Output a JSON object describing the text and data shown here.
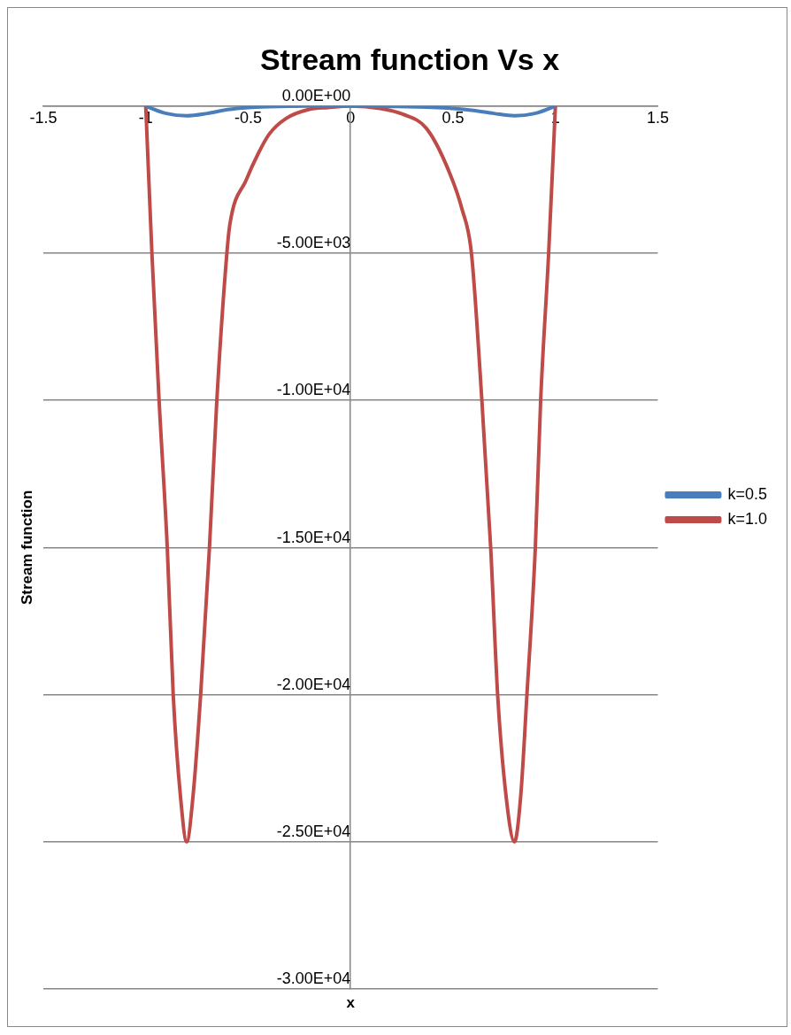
{
  "chart_data": {
    "type": "line",
    "title": "Stream function Vs x",
    "xlabel": "x",
    "ylabel": "Stream function",
    "xlim": [
      -1.5,
      1.5
    ],
    "xticks": [
      -1.5,
      -1,
      -0.5,
      0,
      0.5,
      1,
      1.5
    ],
    "ylim": [
      -30000,
      0
    ],
    "yticks": [
      {
        "value": -30000,
        "label": "-3.00E+04"
      },
      {
        "value": -25000,
        "label": "-2.50E+04"
      },
      {
        "value": -20000,
        "label": "-2.00E+04"
      },
      {
        "value": -15000,
        "label": "-1.50E+04"
      },
      {
        "value": -10000,
        "label": "-1.00E+04"
      },
      {
        "value": -5000,
        "label": "-5.00E+03"
      },
      {
        "value": 0,
        "label": "0.00E+00"
      }
    ],
    "grid": "y",
    "legend": "right",
    "marker": "none",
    "line_style": "solid",
    "series": [
      {
        "name": "k=0.5",
        "color": "#4a7ebb",
        "x": [
          -1,
          -0.9,
          -0.8,
          -0.7,
          -0.6,
          -0.5,
          -0.4,
          -0.2,
          0,
          0.2,
          0.4,
          0.5,
          0.6,
          0.7,
          0.8,
          0.9,
          1
        ],
        "values": [
          0,
          -250,
          -330,
          -250,
          -120,
          -50,
          -20,
          0,
          0,
          -10,
          -40,
          -80,
          -150,
          -250,
          -330,
          -250,
          0
        ]
      },
      {
        "name": "k=1.0",
        "color": "#be4b48",
        "x": [
          -1,
          -0.97,
          -0.935,
          -0.895,
          -0.866,
          -0.83,
          -0.8,
          -0.77,
          -0.732,
          -0.689,
          -0.653,
          -0.604,
          -0.589,
          -0.509,
          -0.45,
          -0.397,
          -0.317,
          -0.206,
          -0.11,
          0,
          0.144,
          0.257,
          0.368,
          0.464,
          0.544,
          0.59,
          0.641,
          0.684,
          0.718,
          0.76,
          0.8,
          0.83,
          0.861,
          0.902,
          0.928,
          0.967,
          1
        ],
        "values": [
          0,
          -5000,
          -10000,
          -15000,
          -20000,
          -23500,
          -25000,
          -23500,
          -20000,
          -15000,
          -10000,
          -5000,
          -4000,
          -2500,
          -1600,
          -950,
          -430,
          -120,
          -50,
          0,
          -80,
          -280,
          -740,
          -1950,
          -3500,
          -5000,
          -10000,
          -15000,
          -20000,
          -23500,
          -25000,
          -23500,
          -20000,
          -15000,
          -10000,
          -5000,
          0
        ]
      }
    ]
  }
}
